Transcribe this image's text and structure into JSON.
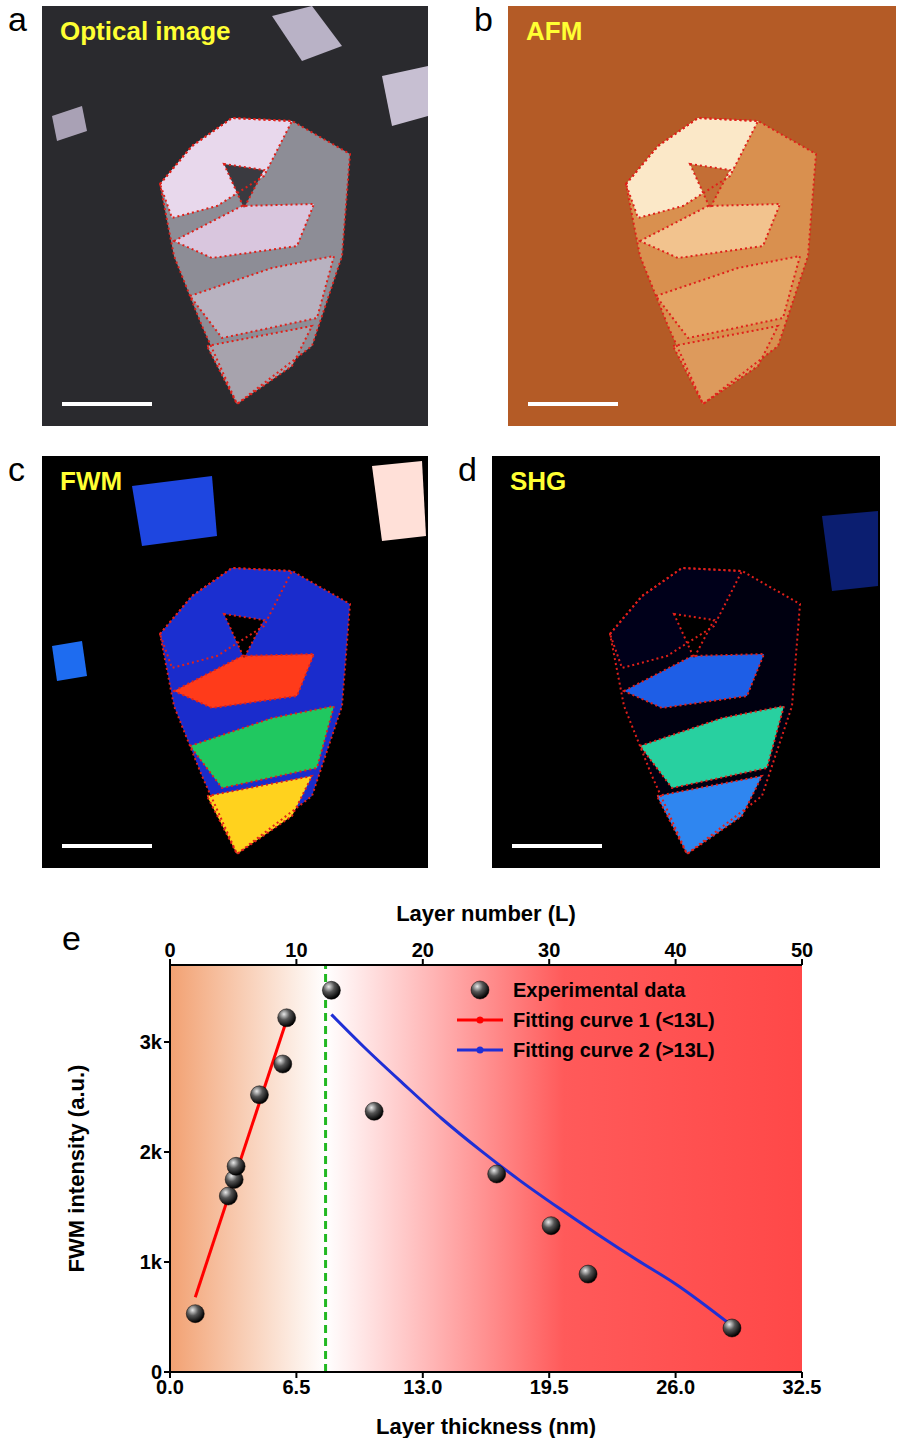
{
  "panels": [
    {
      "letter": "a",
      "label": "Optical image"
    },
    {
      "letter": "b",
      "label": "AFM"
    },
    {
      "letter": "c",
      "label": "FWM"
    },
    {
      "letter": "d",
      "label": "SHG"
    }
  ],
  "chart_data": {
    "panel": "e",
    "type": "scatter",
    "xlabel": "Layer thickness (nm)",
    "ylabel": "FWM intensity (a.u.)",
    "x2label": "Layer number (L)",
    "xlim": [
      0,
      32.5
    ],
    "xticks": [
      {
        "value": 0,
        "label": "0.0"
      },
      6.5,
      {
        "value": 13,
        "label": "13.0"
      },
      19.5,
      {
        "value": 26,
        "label": "26.0"
      },
      32.5
    ],
    "x2lim": [
      0,
      50
    ],
    "x2ticks": [
      0,
      10,
      20,
      30,
      40,
      50
    ],
    "ylim": [
      0,
      3700
    ],
    "yticks": [
      0,
      {
        "value": 1000,
        "label": "1k"
      },
      {
        "value": 2000,
        "label": "2k"
      },
      {
        "value": 3000,
        "label": "3k"
      }
    ],
    "grid": false,
    "legend": "upper right",
    "threshold_x": 8.0,
    "series": [
      {
        "name": "Experimental data",
        "type": "scatter",
        "color": "#000000",
        "marker": "circle",
        "x": [
          1.3,
          3.0,
          3.3,
          3.4,
          4.6,
          5.8,
          6.0,
          8.3,
          10.5,
          16.8,
          19.6,
          21.5,
          28.9
        ],
        "values": [
          530,
          1600,
          1750,
          1870,
          2520,
          2800,
          3220,
          3470,
          2370,
          1800,
          1330,
          890,
          400
        ]
      },
      {
        "name": "Fitting curve 1 (<13L)",
        "type": "line",
        "color": "#ff0000",
        "x": [
          1.3,
          6.0
        ],
        "values": [
          680,
          3200
        ]
      },
      {
        "name": "Fitting curve 2 (>13L)",
        "type": "line",
        "color": "#1f2fd6",
        "x": [
          8.3,
          10,
          12,
          14,
          16,
          18,
          20,
          22,
          24,
          26,
          28.9
        ],
        "values": [
          3250,
          2950,
          2620,
          2300,
          2010,
          1740,
          1490,
          1250,
          1020,
          800,
          420
        ]
      }
    ]
  }
}
